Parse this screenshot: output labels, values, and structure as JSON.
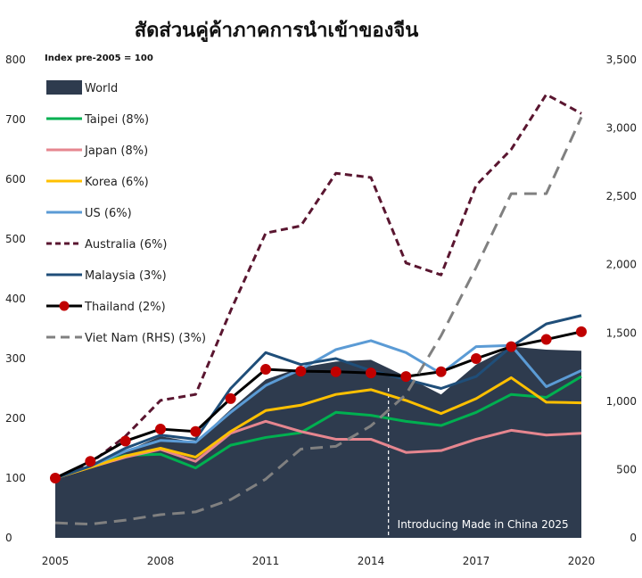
{
  "chart_data": {
    "type": "area",
    "title": "สัดส่วนคู่ค้าภาคการนำเข้าของจีน",
    "subtitle": "Index pre-2005 = 100",
    "x": [
      2005,
      2006,
      2007,
      2008,
      2009,
      2010,
      2011,
      2012,
      2013,
      2014,
      2015,
      2016,
      2017,
      2018,
      2019,
      2020
    ],
    "x_tick_labels": [
      "2005",
      "2008",
      "2011",
      "2014",
      "2017",
      "2020"
    ],
    "y_left": {
      "range": [
        0,
        800
      ],
      "ticks": [
        "0",
        "100",
        "200",
        "300",
        "400",
        "500",
        "600",
        "700",
        "800"
      ]
    },
    "y_right": {
      "range": [
        0,
        3500
      ],
      "ticks": [
        "0",
        "500",
        "1,000",
        "1,500",
        "2,000",
        "2,500",
        "3,000",
        "3,500"
      ]
    },
    "series": [
      {
        "name": "World",
        "style": "area",
        "axis": "left",
        "color": "#2e3b4e",
        "values": [
          100,
          120,
          145,
          170,
          160,
          215,
          265,
          285,
          295,
          298,
          270,
          240,
          290,
          320,
          315,
          313
        ]
      },
      {
        "name": "Taipei (8%)",
        "style": "solid",
        "axis": "left",
        "color": "#00b050",
        "values": [
          100,
          120,
          138,
          140,
          117,
          155,
          168,
          176,
          210,
          205,
          195,
          188,
          210,
          240,
          235,
          270
        ]
      },
      {
        "name": "Japan (8%)",
        "style": "solid",
        "axis": "left",
        "color": "#e6868f",
        "values": [
          100,
          118,
          135,
          148,
          128,
          175,
          195,
          178,
          165,
          165,
          143,
          146,
          165,
          180,
          172,
          175
        ]
      },
      {
        "name": "Korea (6%)",
        "style": "solid",
        "axis": "left",
        "color": "#ffc000",
        "values": [
          100,
          118,
          137,
          150,
          135,
          178,
          213,
          222,
          240,
          248,
          230,
          208,
          233,
          268,
          227,
          226
        ]
      },
      {
        "name": "US (6%)",
        "style": "solid",
        "axis": "left",
        "color": "#5b9bd5",
        "values": [
          100,
          120,
          145,
          163,
          160,
          210,
          255,
          282,
          315,
          330,
          310,
          275,
          320,
          322,
          253,
          280
        ]
      },
      {
        "name": "Australia (6%)",
        "style": "dashed",
        "axis": "left",
        "color": "#5a1630",
        "values": [
          100,
          125,
          170,
          230,
          240,
          380,
          510,
          522,
          610,
          603,
          460,
          440,
          590,
          650,
          742,
          710
        ]
      },
      {
        "name": "Malaysia (3%)",
        "style": "solid",
        "axis": "left",
        "color": "#1f4e79",
        "values": [
          100,
          120,
          150,
          172,
          165,
          250,
          310,
          290,
          300,
          280,
          265,
          250,
          270,
          320,
          358,
          372
        ]
      },
      {
        "name": "Thailand (2%)",
        "style": "markers",
        "axis": "left",
        "color": "#000000",
        "marker_color": "#c00000",
        "values": [
          100,
          128,
          162,
          182,
          178,
          233,
          282,
          279,
          278,
          276,
          270,
          278,
          300,
          320,
          332,
          345
        ]
      },
      {
        "name": "Viet Nam (RHS) (3%)",
        "style": "dashed",
        "axis": "right",
        "color": "#808080",
        "values": [
          110,
          100,
          130,
          170,
          190,
          280,
          430,
          650,
          670,
          820,
          1050,
          1480,
          1980,
          2520,
          2520,
          3080
        ]
      }
    ],
    "annotation": {
      "year": 2014.5,
      "text": "Introducing Made in China 2025"
    },
    "legend_placement": "top-left"
  }
}
